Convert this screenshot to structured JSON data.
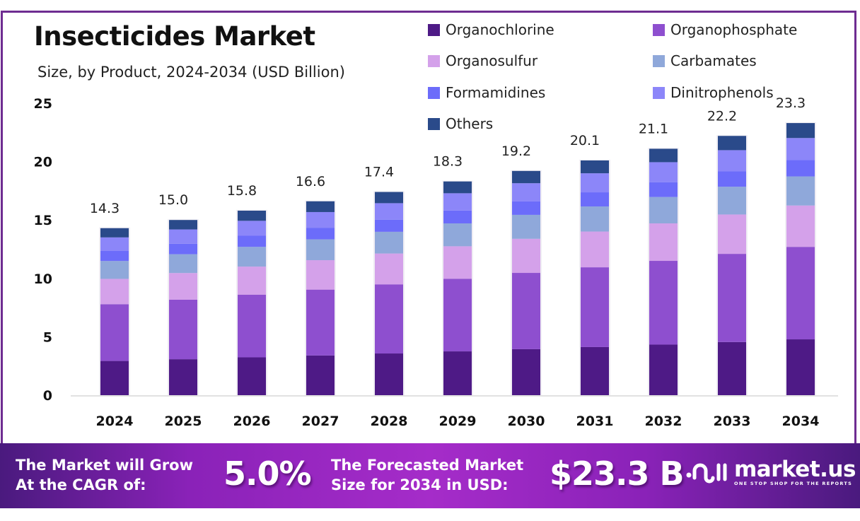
{
  "header": {
    "title": "Insecticides Market",
    "subtitle": "Size, by Product, 2024-2034 (USD Billion)"
  },
  "chart_data": {
    "type": "bar",
    "stacked": true,
    "title": "Insecticides Market",
    "subtitle": "Size, by Product, 2024-2034 (USD Billion)",
    "xlabel": "",
    "ylabel": "",
    "ylim": [
      0,
      25
    ],
    "yticks": [
      0,
      5,
      10,
      15,
      20,
      25
    ],
    "grid": false,
    "legend_position": "top-right",
    "categories": [
      "2024",
      "2025",
      "2026",
      "2027",
      "2028",
      "2029",
      "2030",
      "2031",
      "2032",
      "2033",
      "2034"
    ],
    "totals": [
      14.3,
      15.0,
      15.8,
      16.6,
      17.4,
      18.3,
      19.2,
      20.1,
      21.1,
      22.2,
      23.3
    ],
    "total_labels": [
      "14.3",
      "15.0",
      "15.8",
      "16.6",
      "17.4",
      "18.3",
      "19.2",
      "20.1",
      "21.1",
      "22.2",
      "23.3"
    ],
    "series": [
      {
        "name": "Organochlorine",
        "color": "#4E1A86",
        "values": [
          2.93,
          3.08,
          3.24,
          3.4,
          3.57,
          3.75,
          3.94,
          4.12,
          4.33,
          4.55,
          4.78
        ]
      },
      {
        "name": "Organophosphate",
        "color": "#8E4FCF",
        "values": [
          4.86,
          5.1,
          5.37,
          5.64,
          5.92,
          6.22,
          6.53,
          6.83,
          7.17,
          7.55,
          7.92
        ]
      },
      {
        "name": "Organosulfur",
        "color": "#D4A1EA",
        "values": [
          2.17,
          2.28,
          2.4,
          2.52,
          2.64,
          2.78,
          2.92,
          3.06,
          3.21,
          3.37,
          3.54
        ]
      },
      {
        "name": "Carbamates",
        "color": "#8FA8DA",
        "values": [
          1.53,
          1.61,
          1.69,
          1.78,
          1.86,
          1.96,
          2.05,
          2.15,
          2.26,
          2.38,
          2.49
        ]
      },
      {
        "name": "Formamidines",
        "color": "#6C6CFA",
        "values": [
          0.86,
          0.9,
          0.95,
          1.0,
          1.04,
          1.1,
          1.15,
          1.21,
          1.27,
          1.33,
          1.4
        ]
      },
      {
        "name": "Dinitrophenols",
        "color": "#8C86F9",
        "values": [
          1.16,
          1.22,
          1.28,
          1.34,
          1.41,
          1.48,
          1.56,
          1.63,
          1.71,
          1.8,
          1.89
        ]
      },
      {
        "name": "Others",
        "color": "#2A4A8A",
        "values": [
          0.79,
          0.81,
          0.87,
          0.92,
          0.96,
          1.01,
          1.05,
          1.1,
          1.15,
          1.22,
          1.28
        ]
      }
    ]
  },
  "legend": {
    "items": [
      {
        "label": "Organochlorine",
        "color": "#4E1A86"
      },
      {
        "label": "Organophosphate",
        "color": "#8E4FCF"
      },
      {
        "label": "Organosulfur",
        "color": "#D4A1EA"
      },
      {
        "label": "Carbamates",
        "color": "#8FA8DA"
      },
      {
        "label": "Formamidines",
        "color": "#6C6CFA"
      },
      {
        "label": "Dinitrophenols",
        "color": "#8C86F9"
      },
      {
        "label": "Others",
        "color": "#2A4A8A"
      }
    ]
  },
  "banner": {
    "cagr_text_line1": "The Market will Grow",
    "cagr_text_line2": "At the CAGR of:",
    "cagr_value": "5.0%",
    "forecast_text_line1": "The Forecasted Market",
    "forecast_text_line2": "Size for 2034 in USD:",
    "forecast_value": "$23.3 B",
    "logo_name": "market.us",
    "logo_tagline": "ONE STOP SHOP FOR THE REPORTS",
    "logo_icon": "market-us-logo-icon"
  },
  "colors": {
    "frame": "#6E2C91",
    "banner_dark": "#4A1A7E",
    "banner_light": "#A52CC9"
  }
}
